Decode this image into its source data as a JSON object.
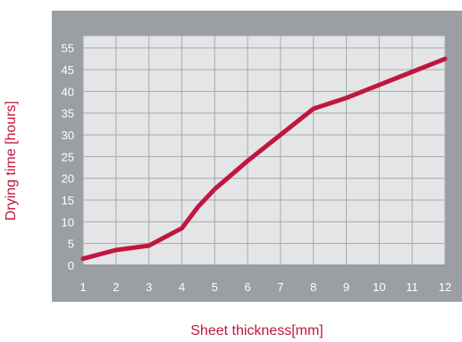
{
  "chart_data": {
    "type": "line",
    "xlabel": "Sheet thickness[mm]",
    "ylabel": "Drying time [hours]",
    "x_ticks": [
      "1",
      "2",
      "3",
      "4",
      "5",
      "6",
      "7",
      "8",
      "9",
      "10",
      "11",
      "12"
    ],
    "y_ticks": [
      "0",
      "5",
      "10",
      "15",
      "20",
      "25",
      "30",
      "35",
      "40",
      "45",
      "55"
    ],
    "xlim": [
      1,
      12
    ],
    "ylim": [
      0,
      55
    ],
    "grid": true,
    "series": [
      {
        "color": "#c0163f",
        "x": [
          1,
          2,
          3,
          4,
          4.5,
          5,
          6,
          7,
          8,
          9,
          10,
          11,
          12
        ],
        "y": [
          1.5,
          3.5,
          4.5,
          8.5,
          13.5,
          17.5,
          24,
          30,
          36,
          38.5,
          41.5,
          44.5,
          47.5
        ]
      }
    ],
    "colors": {
      "panel": "#9b9ea3",
      "plot_bg": "#e4e5e7",
      "grid": "#a7a9ad",
      "tick_text": "#ffffff",
      "label_text": "#c0163f"
    }
  }
}
